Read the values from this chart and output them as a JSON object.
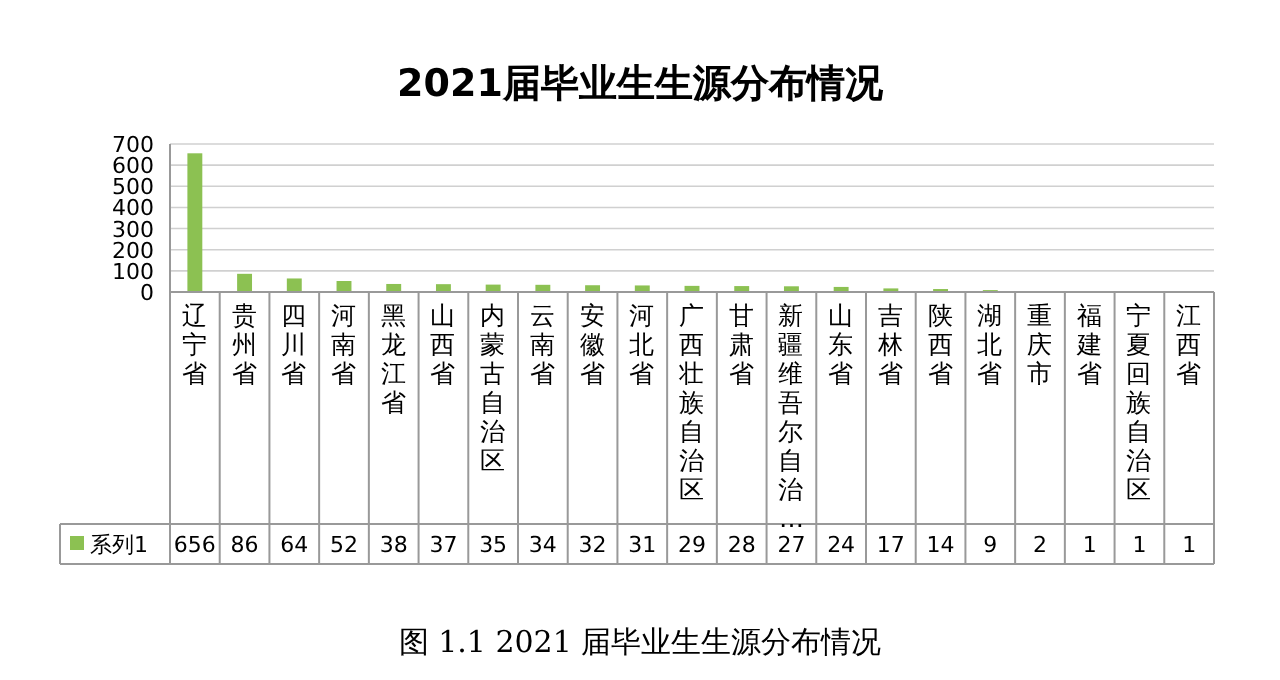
{
  "chart_data": {
    "type": "bar",
    "title": "2021届毕业生生源分布情况",
    "categories": [
      "辽宁省",
      "贵州省",
      "四川省",
      "河南省",
      "黑龙江省",
      "山西省",
      "内蒙古自治区",
      "云南省",
      "安徽省",
      "河北省",
      "广西壮族自治区",
      "甘肃省",
      "新疆维吾尔自治…",
      "山东省",
      "吉林省",
      "陕西省",
      "湖北省",
      "重庆市",
      "福建省",
      "宁夏回族自治区",
      "江西省"
    ],
    "series": [
      {
        "name": "系列1",
        "color": "#8cc152",
        "values": [
          656,
          86,
          64,
          52,
          38,
          37,
          35,
          34,
          32,
          31,
          29,
          28,
          27,
          24,
          17,
          14,
          9,
          2,
          1,
          1,
          1
        ]
      }
    ],
    "ylim": [
      0,
      700
    ],
    "yticks": [
      0,
      100,
      200,
      300,
      400,
      500,
      600,
      700
    ],
    "grid": "y",
    "legend": "bottom left",
    "data_labels": true,
    "annotations": [
      "图 1.1 2021 届毕业生生源分布情况"
    ]
  }
}
